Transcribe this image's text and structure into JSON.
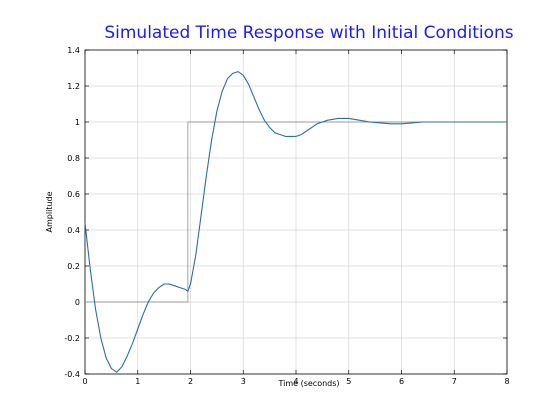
{
  "chart_data": {
    "type": "line",
    "title": "Simulated Time Response with Initial Conditions",
    "xlabel": "Time (seconds)",
    "ylabel": "Amplitude",
    "xlim": [
      0,
      8
    ],
    "ylim": [
      -0.4,
      1.4
    ],
    "xticks": [
      0,
      1,
      2,
      3,
      4,
      5,
      6,
      7,
      8
    ],
    "xtick_labels": [
      "0",
      "1",
      "2",
      "3",
      "4",
      "5",
      "6",
      "7",
      "8"
    ],
    "yticks": [
      -0.4,
      -0.2,
      0,
      0.2,
      0.4,
      0.6,
      0.8,
      1,
      1.2,
      1.4
    ],
    "ytick_labels": [
      "-0.4",
      "-0.2",
      "0",
      "0.2",
      "0.4",
      "0.6",
      "0.8",
      "1",
      "1.2",
      "1.4"
    ],
    "grid": true,
    "series": [
      {
        "color": "#999999",
        "step": true,
        "x": [
          0,
          1.95,
          1.95,
          8
        ],
        "y": [
          0,
          0,
          1,
          1
        ]
      },
      {
        "color": "#2b6ea8",
        "x": [
          0,
          0.1,
          0.2,
          0.3,
          0.4,
          0.5,
          0.6,
          0.7,
          0.8,
          0.9,
          1.0,
          1.1,
          1.2,
          1.3,
          1.4,
          1.5,
          1.6,
          1.7,
          1.8,
          1.9,
          1.95,
          2.0,
          2.1,
          2.2,
          2.3,
          2.4,
          2.5,
          2.6,
          2.7,
          2.8,
          2.9,
          3.0,
          3.1,
          3.2,
          3.3,
          3.4,
          3.5,
          3.6,
          3.7,
          3.8,
          3.9,
          4.0,
          4.1,
          4.2,
          4.3,
          4.4,
          4.5,
          4.6,
          4.7,
          4.8,
          4.9,
          5.0,
          5.2,
          5.4,
          5.6,
          5.8,
          6.0,
          6.2,
          6.4,
          6.6,
          6.8,
          7.0,
          7.5,
          8.0
        ],
        "y": [
          0.44,
          0.18,
          -0.04,
          -0.2,
          -0.31,
          -0.37,
          -0.39,
          -0.36,
          -0.3,
          -0.23,
          -0.15,
          -0.07,
          0.0,
          0.05,
          0.08,
          0.1,
          0.1,
          0.09,
          0.08,
          0.07,
          0.06,
          0.1,
          0.26,
          0.48,
          0.7,
          0.9,
          1.06,
          1.17,
          1.24,
          1.27,
          1.28,
          1.26,
          1.21,
          1.14,
          1.07,
          1.01,
          0.97,
          0.94,
          0.93,
          0.92,
          0.92,
          0.92,
          0.93,
          0.95,
          0.97,
          0.99,
          1.0,
          1.01,
          1.015,
          1.02,
          1.02,
          1.02,
          1.01,
          1.0,
          0.995,
          0.99,
          0.99,
          0.995,
          1.0,
          1.0,
          1.0,
          1.0,
          1.0,
          1.0
        ]
      }
    ],
    "colors": {
      "title": "#1a1aff",
      "grid": "#d6d6d6",
      "axes": "#000000",
      "background": "#ffffff"
    }
  }
}
